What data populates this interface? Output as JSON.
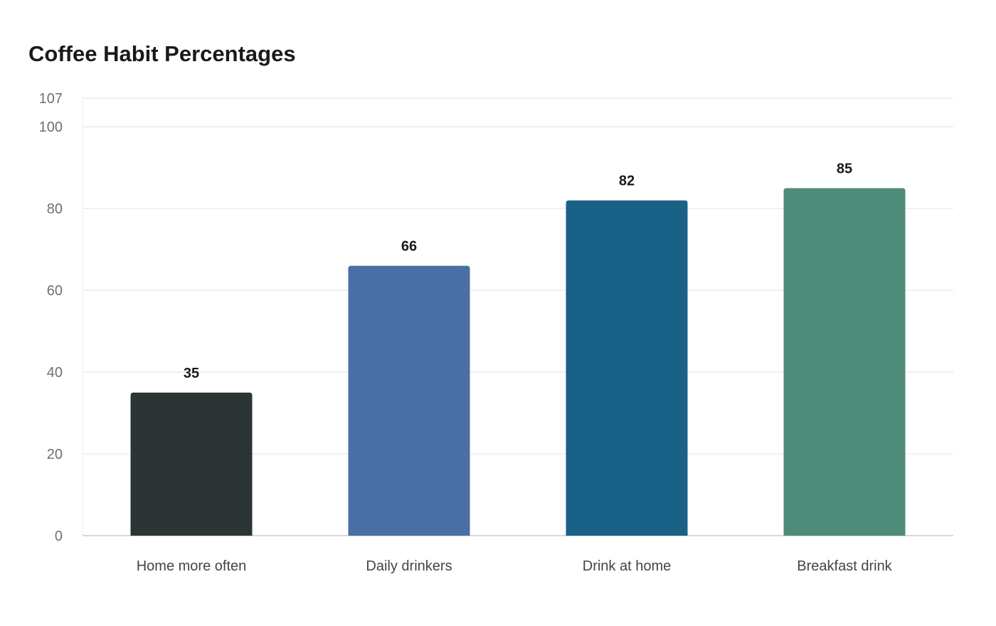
{
  "chart_data": {
    "type": "bar",
    "title": "Coffee Habit Percentages",
    "xlabel": "",
    "ylabel": "",
    "categories": [
      "Home more often",
      "Daily drinkers",
      "Drink at home",
      "Breakfast drink"
    ],
    "values": [
      35,
      66,
      82,
      85
    ],
    "colors": [
      "#2d3436",
      "#4a6fa5",
      "#1a6188",
      "#4e8b79"
    ],
    "ylim": [
      0,
      107
    ],
    "yticks": [
      0,
      20,
      40,
      60,
      80,
      100,
      107
    ],
    "grid": true,
    "legend": "none"
  }
}
